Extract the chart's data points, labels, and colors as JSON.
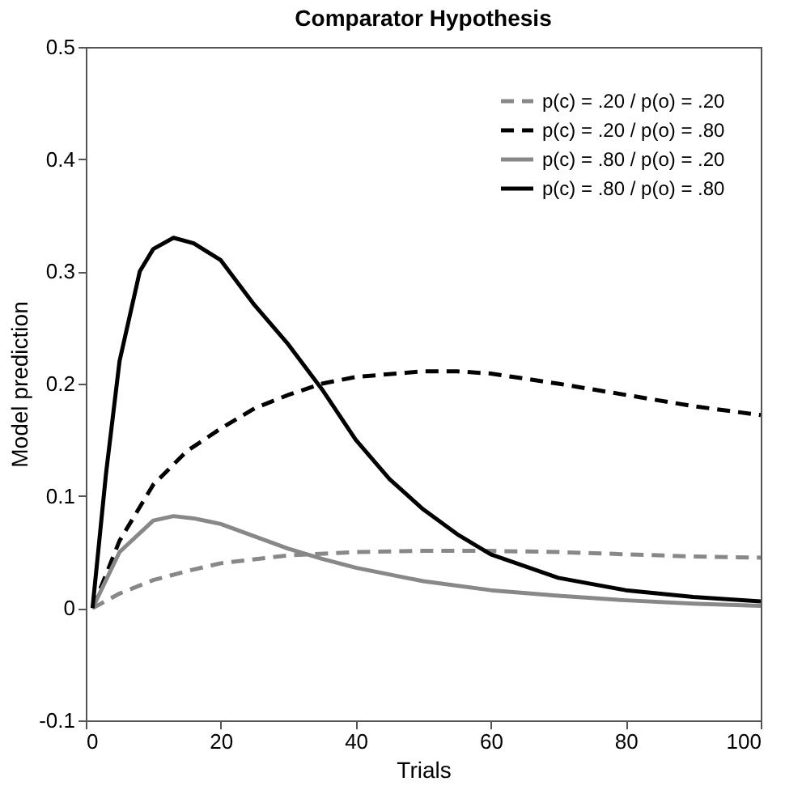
{
  "chart_data": {
    "type": "line",
    "title": "Comparator Hypothesis",
    "xlabel": "Trials",
    "ylabel": "Model prediction",
    "xlim": [
      0,
      100
    ],
    "xticks": [
      0,
      20,
      40,
      60,
      80,
      100
    ],
    "ylim": [
      -0.1,
      0.5
    ],
    "yticks": [
      -0.1,
      0,
      0.1,
      0.2,
      0.3,
      0.4,
      0.5
    ],
    "grid": false,
    "legend": "top right",
    "marker": "none",
    "series": [
      {
        "name": "p(c) = .20 / p(o) = .20",
        "color": "#888888",
        "line_style": "dashed",
        "x": [
          1,
          5,
          10,
          15,
          20,
          30,
          40,
          50,
          60,
          70,
          80,
          90,
          100
        ],
        "values": [
          0,
          0.013,
          0.025,
          0.033,
          0.04,
          0.047,
          0.05,
          0.051,
          0.051,
          0.05,
          0.048,
          0.046,
          0.045
        ]
      },
      {
        "name": "p(c) = .20 / p(o) = .80",
        "color": "#000000",
        "line_style": "dashed",
        "x": [
          1,
          5,
          10,
          15,
          20,
          25,
          30,
          35,
          40,
          50,
          55,
          60,
          70,
          80,
          90,
          100
        ],
        "values": [
          0,
          0.06,
          0.11,
          0.14,
          0.16,
          0.178,
          0.19,
          0.2,
          0.206,
          0.211,
          0.211,
          0.209,
          0.2,
          0.19,
          0.18,
          0.172
        ]
      },
      {
        "name": "p(c) = .80 / p(o) = .20",
        "color": "#888888",
        "line_style": "solid",
        "x": [
          1,
          5,
          10,
          13,
          16,
          20,
          25,
          30,
          35,
          40,
          50,
          60,
          70,
          80,
          90,
          100
        ],
        "values": [
          0,
          0.05,
          0.078,
          0.082,
          0.08,
          0.075,
          0.064,
          0.053,
          0.044,
          0.036,
          0.024,
          0.016,
          0.011,
          0.007,
          0.004,
          0.002
        ]
      },
      {
        "name": "p(c) = .80 / p(o) = .80",
        "color": "#000000",
        "line_style": "solid",
        "x": [
          1,
          3,
          5,
          8,
          10,
          13,
          16,
          20,
          25,
          30,
          35,
          40,
          45,
          50,
          55,
          60,
          70,
          80,
          90,
          100
        ],
        "values": [
          0,
          0.12,
          0.22,
          0.3,
          0.32,
          0.33,
          0.325,
          0.31,
          0.27,
          0.235,
          0.195,
          0.15,
          0.115,
          0.088,
          0.066,
          0.048,
          0.027,
          0.016,
          0.01,
          0.006
        ]
      }
    ]
  }
}
